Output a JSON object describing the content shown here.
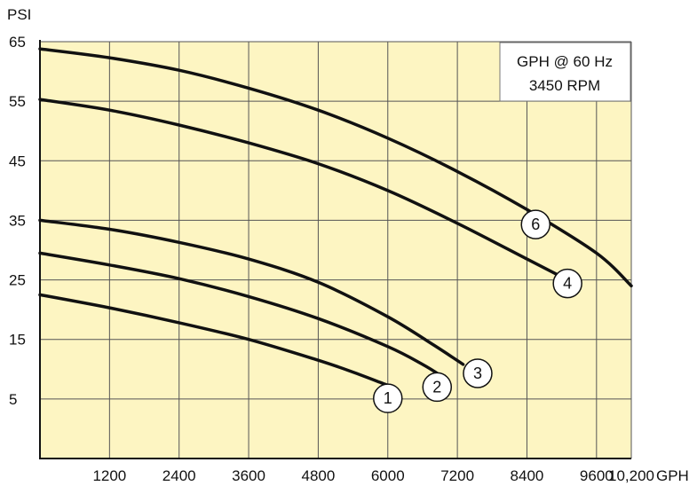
{
  "chart_data": {
    "type": "line",
    "title": "",
    "xlabel": "",
    "ylabel": "",
    "y_unit": "PSI",
    "x_unit": "GPH",
    "xlim": [
      0,
      10200
    ],
    "ylim": [
      -5,
      65
    ],
    "x_ticks": [
      1200,
      2400,
      3600,
      4800,
      6000,
      7200,
      8400,
      9600,
      10200
    ],
    "x_tick_labels": [
      "1200",
      "2400",
      "3600",
      "4800",
      "6000",
      "7200",
      "8400",
      "9600",
      "10,200"
    ],
    "y_ticks": [
      5,
      15,
      25,
      35,
      45,
      55,
      65
    ],
    "y_tick_labels": [
      "5",
      "15",
      "25",
      "35",
      "45",
      "55",
      "65"
    ],
    "grid": true,
    "background_color": "#fdf5c2",
    "line_color": "#111111",
    "legend_box": {
      "line1": "GPH @ 60 Hz",
      "line2": "3450 RPM",
      "placement": "top-right"
    },
    "series": [
      {
        "name": "1",
        "x": [
          0,
          1200,
          2400,
          3600,
          4800,
          5400,
          6000
        ],
        "y": [
          22.5,
          20.3,
          17.8,
          15.0,
          11.5,
          9.5,
          7.3
        ],
        "label_at": [
          6000,
          5.1
        ]
      },
      {
        "name": "2",
        "x": [
          0,
          1200,
          2400,
          3600,
          4800,
          6000,
          6600,
          6950
        ],
        "y": [
          29.5,
          27.5,
          25.2,
          22.2,
          18.5,
          13.8,
          10.8,
          8.7
        ],
        "label_at": [
          6850,
          7.0
        ]
      },
      {
        "name": "3",
        "x": [
          0,
          1200,
          2400,
          3600,
          4800,
          6000,
          6800,
          7300
        ],
        "y": [
          35.0,
          33.5,
          31.3,
          28.5,
          24.6,
          18.8,
          14.0,
          10.8
        ],
        "label_at": [
          7550,
          9.3
        ]
      },
      {
        "name": "4",
        "x": [
          0,
          1200,
          2400,
          3600,
          4800,
          6000,
          7200,
          8400,
          9000
        ],
        "y": [
          55.3,
          53.5,
          51.0,
          48.0,
          44.5,
          40.0,
          34.5,
          28.5,
          25.5
        ],
        "label_at": [
          9100,
          24.4
        ]
      },
      {
        "name": "6",
        "x": [
          0,
          1200,
          2400,
          3600,
          4800,
          6000,
          7200,
          8400,
          9600,
          10200
        ],
        "y": [
          63.8,
          62.3,
          60.2,
          57.2,
          53.5,
          48.8,
          43.2,
          36.8,
          29.5,
          24.0
        ],
        "label_at": [
          8550,
          34.3
        ]
      }
    ]
  }
}
